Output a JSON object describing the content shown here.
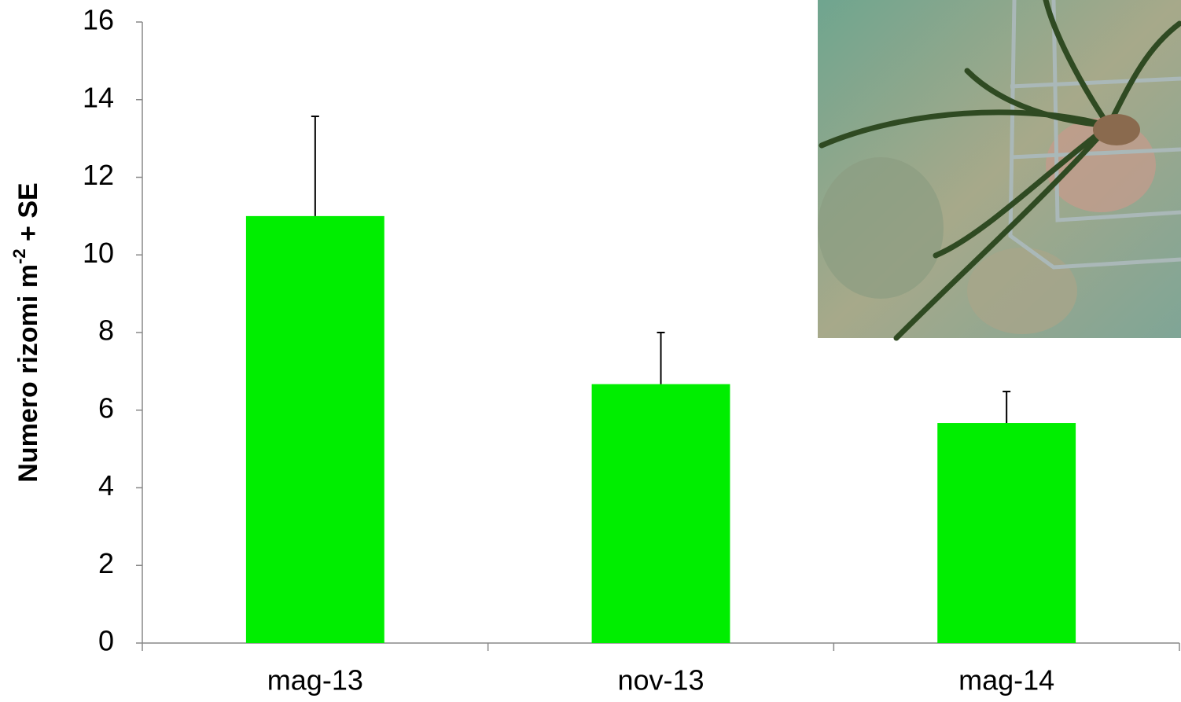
{
  "chart_data": {
    "type": "bar",
    "y_label": {
      "text": "Numero  rizomi m",
      "superscript": "-2",
      "suffix": " + SE"
    },
    "categories": [
      "mag-13",
      "nov-13",
      "mag-14"
    ],
    "values": [
      11.0,
      6.67,
      5.67
    ],
    "errors": [
      2.57,
      1.33,
      0.81
    ],
    "color": "#00ee00",
    "error_color": "#000000",
    "ylim": [
      0,
      16
    ],
    "yticks": [
      0,
      2,
      4,
      6,
      8,
      10,
      12,
      14,
      16
    ],
    "grid": false
  }
}
